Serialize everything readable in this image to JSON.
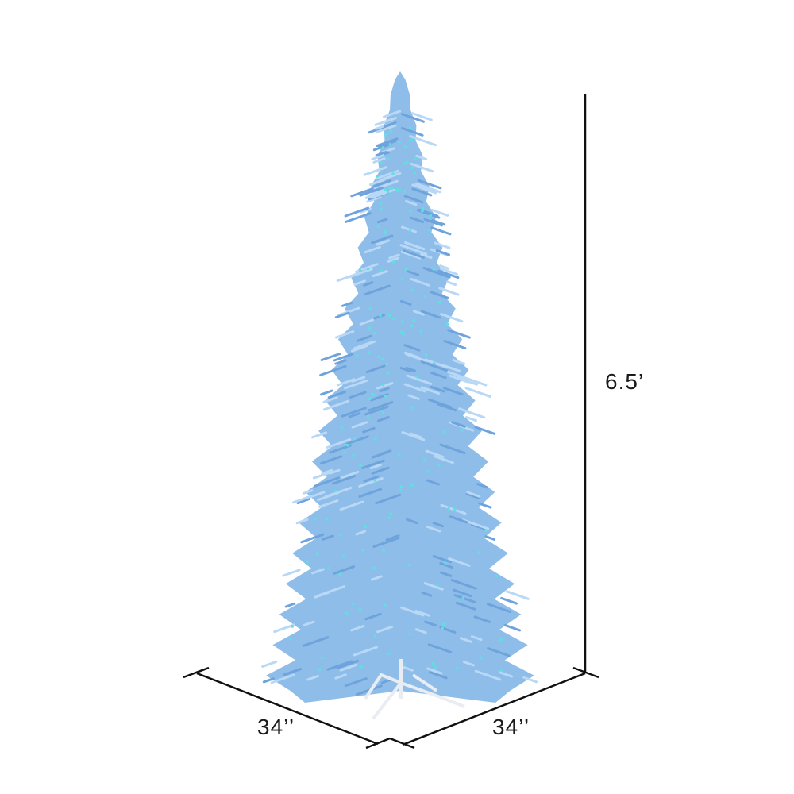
{
  "product": {
    "image": "blue-christmas-tree",
    "colors": {
      "foliage": "#8fbde9",
      "foliage_dark": "#6fa3dc",
      "foliage_light": "#b9d8f5",
      "lights": "#5fe0e0",
      "stand": "#f4f6f8",
      "dimension_lines": "#111111"
    }
  },
  "dimensions": {
    "height": "6.5’",
    "depth": "34’’",
    "width": "34’’"
  }
}
